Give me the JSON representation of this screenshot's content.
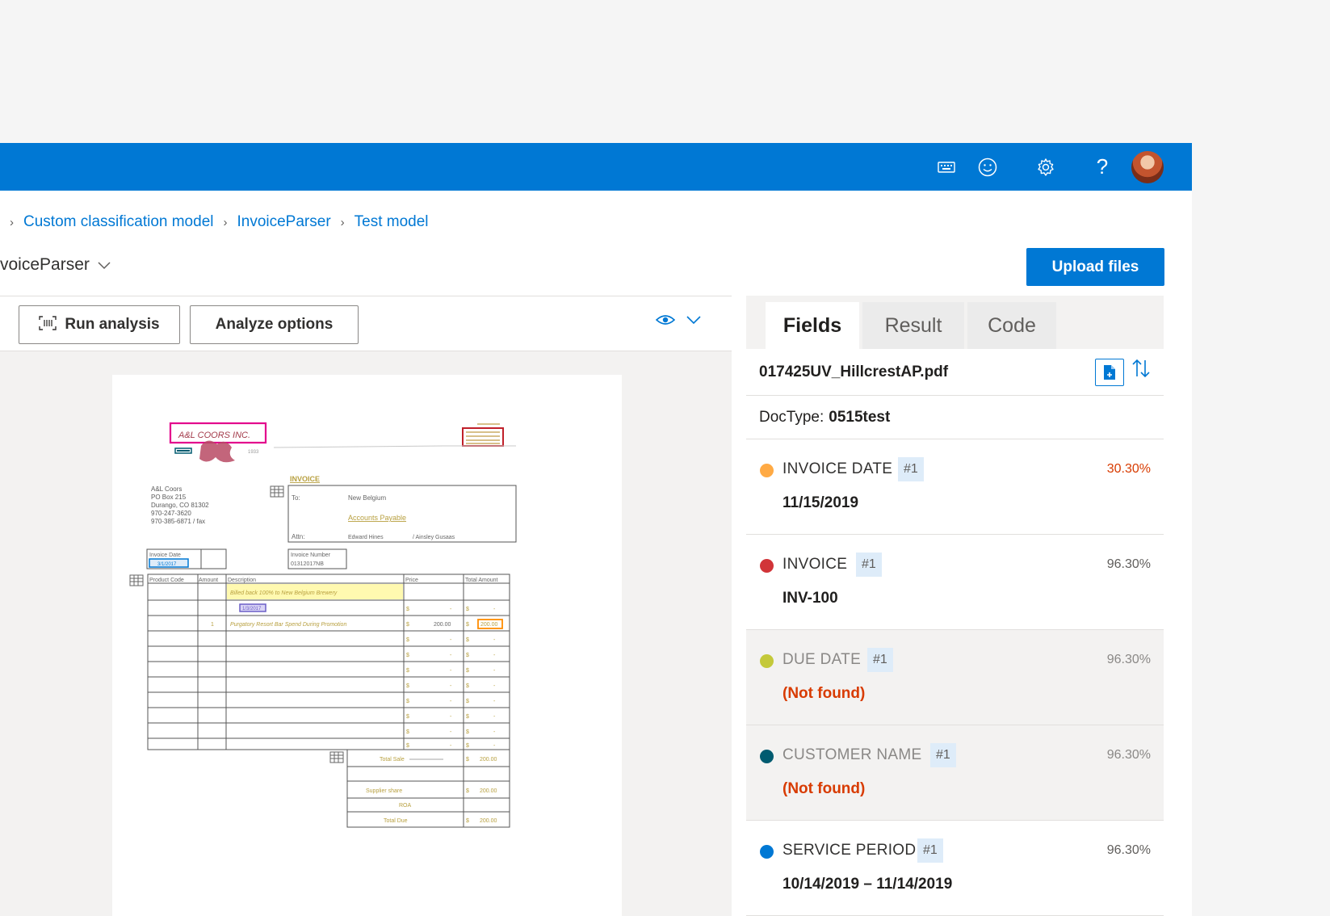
{
  "topbar": {
    "icons": [
      "keyboard-icon",
      "smiley-icon",
      "settings-icon",
      "help-icon"
    ],
    "avatar": "user-avatar"
  },
  "breadcrumb": [
    {
      "label": "Custom classification model"
    },
    {
      "label": "InvoiceParser"
    },
    {
      "label": "Test model"
    }
  ],
  "model_title": "voiceParser",
  "upload_label": "Upload files",
  "toolbar": {
    "run_label": "Run analysis",
    "analyze_label": "Analyze options"
  },
  "tabs": [
    {
      "label": "Fields",
      "active": true
    },
    {
      "label": "Result",
      "active": false
    },
    {
      "label": "Code",
      "active": false
    }
  ],
  "file_name": "017425UV_HillcrestAP.pdf",
  "doctype": {
    "label": "DocType:",
    "value": "0515test"
  },
  "fields": [
    {
      "name": "INVOICE DATE",
      "badge": "#1",
      "confidence": "30.30%",
      "value": "11/15/2019",
      "color": "#ffaa44",
      "dim": false,
      "not_found": false,
      "low": true
    },
    {
      "name": "INVOICE",
      "badge": "#1",
      "confidence": "96.30%",
      "value": "INV-100",
      "color": "#d13438",
      "dim": false,
      "not_found": false,
      "low": false
    },
    {
      "name": "DUE DATE",
      "badge": "#1",
      "confidence": "96.30%",
      "value": "(Not found)",
      "color": "#c4c93a",
      "dim": true,
      "not_found": true,
      "low": false
    },
    {
      "name": "CUSTOMER NAME",
      "badge": "#1",
      "confidence": "96.30%",
      "value": "(Not found)",
      "color": "#005b70",
      "dim": true,
      "not_found": true,
      "low": false
    },
    {
      "name": "SERVICE PERIOD",
      "badge": "#1",
      "confidence": "96.30%",
      "value": "10/14/2019 – 11/14/2019",
      "color": "#0078d4",
      "dim": false,
      "not_found": false,
      "low": false
    }
  ],
  "invoice": {
    "logo_text": "A&L COORS INC.",
    "logo_sub": "1933",
    "sender_lines": [
      "A&L Coors",
      "PO Box 215",
      "Durango, CO 81302",
      "970-247-3620",
      "970-385-6871 / fax"
    ],
    "heading": "INVOICE",
    "to_label": "To:",
    "to_value": "New Belgium",
    "to_dept": "Accounts Payable",
    "attn_label": "Attn:",
    "attn_value": "Edward Hines",
    "attn_value2": "/ Ainsley Gusaas",
    "invoice_date_label": "Invoice Date",
    "invoice_date_value": "3/1/2017",
    "invoice_number_label": "Invoice Number",
    "invoice_number_value": "01312017NB",
    "table_headers": [
      "Product Code",
      "Amount",
      "Description",
      "Price",
      "Total Amount"
    ],
    "row1_desc": "Billed back 100% to New Belgium Brewery",
    "row2_chip": "1/3/2017",
    "row3_amount": "1",
    "row3_desc": "Purgatory Resort Bar Spend During Promotion",
    "row3_price": "200.00",
    "row3_total": "200.00",
    "currency": "$",
    "dash": "-",
    "total_sale_label": "Total Sale",
    "total_sale_value": "200.00",
    "supplier_label": "Supplier share",
    "supplier_value": "200.00",
    "roa_label": "ROA",
    "total_due_label": "Total Due",
    "total_due_value": "200.00"
  }
}
